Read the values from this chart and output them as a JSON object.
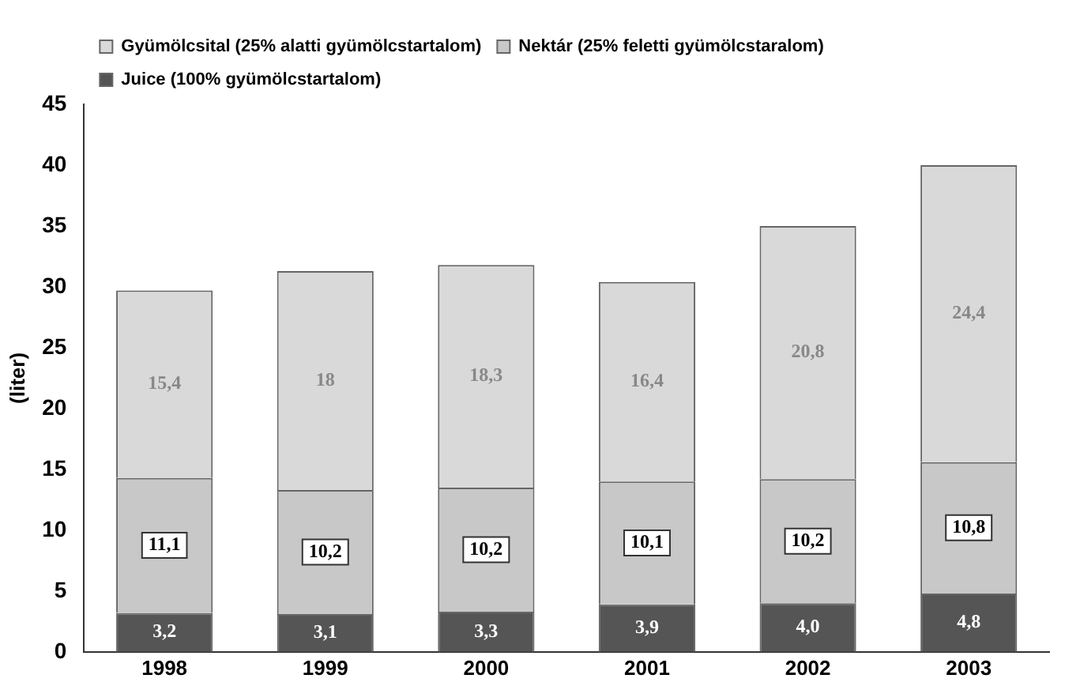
{
  "chart_data": {
    "type": "bar",
    "stacked": true,
    "ylabel": "(liter)",
    "categories": [
      "1998",
      "1999",
      "2000",
      "2001",
      "2002",
      "2003"
    ],
    "series": [
      {
        "name": "Juice (100% gyümölcstartalom)",
        "color": "#555555",
        "values": [
          3.2,
          3.1,
          3.3,
          3.9,
          4.0,
          4.8
        ],
        "value_labels": [
          "3,2",
          "3,1",
          "3,3",
          "3,9",
          "4,0",
          "4,8"
        ]
      },
      {
        "name": "Nektár (25% feletti gyümölcstaralom)",
        "color": "#c8c8c8",
        "values": [
          11.1,
          10.2,
          10.2,
          10.1,
          10.2,
          10.8
        ],
        "value_labels": [
          "11,1",
          "10,2",
          "10,2",
          "10,1",
          "10,2",
          "10,8"
        ]
      },
      {
        "name": "Gyümölcsital (25% alatti gyümölcstartalom)",
        "color": "#d9d9d9",
        "values": [
          15.4,
          18,
          18.3,
          16.4,
          20.8,
          24.4
        ],
        "value_labels": [
          "15,4",
          "18",
          "18,3",
          "16,4",
          "20,8",
          "24,4"
        ]
      }
    ],
    "ylim": [
      0,
      45
    ],
    "yticks": [
      0,
      5,
      10,
      15,
      20,
      25,
      30,
      35,
      40,
      45
    ],
    "grid": false,
    "legend": "top left"
  }
}
